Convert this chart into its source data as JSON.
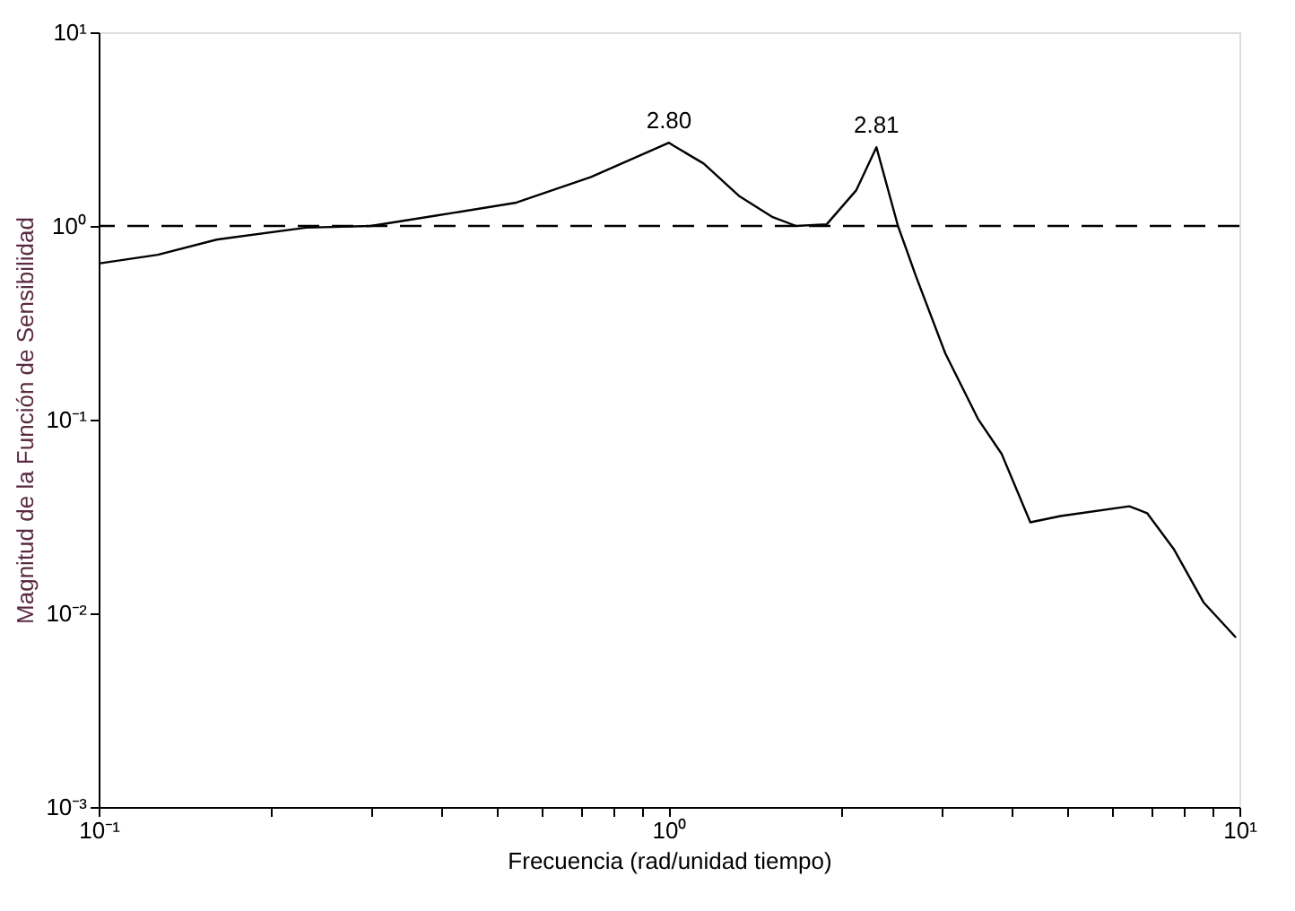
{
  "chart_data": {
    "type": "line",
    "xlabel": "Frecuencia (rad/unidad tiempo)",
    "ylabel": "Magnitud de la Función de Sensibilidad",
    "log": "xy",
    "grid": false,
    "line_style": "solid",
    "marker": "none",
    "xlim": [
      0.1,
      10
    ],
    "ylim": [
      0.001,
      10
    ],
    "xticks": [
      {
        "value": 0.1,
        "label": "10⁻¹"
      },
      {
        "value": 0.2,
        "label": null
      },
      {
        "value": 0.3,
        "label": null
      },
      {
        "value": 0.4,
        "label": null
      },
      {
        "value": 0.5,
        "label": null
      },
      {
        "value": 0.6,
        "label": null
      },
      {
        "value": 0.7,
        "label": null
      },
      {
        "value": 0.8,
        "label": null
      },
      {
        "value": 0.9,
        "label": null
      },
      {
        "value": 1,
        "label": "10⁰"
      },
      {
        "value": 2,
        "label": null
      },
      {
        "value": 3,
        "label": null
      },
      {
        "value": 4,
        "label": null
      },
      {
        "value": 5,
        "label": null
      },
      {
        "value": 6,
        "label": null
      },
      {
        "value": 7,
        "label": null
      },
      {
        "value": 8,
        "label": null
      },
      {
        "value": 9,
        "label": null
      },
      {
        "value": 10,
        "label": "10¹"
      }
    ],
    "yticks": [
      {
        "value": 0.001,
        "label": "10⁻³"
      },
      {
        "value": 0.01,
        "label": "10⁻²"
      },
      {
        "value": 0.1,
        "label": "10⁻¹"
      },
      {
        "value": 1,
        "label": "10⁰"
      },
      {
        "value": 10,
        "label": "10¹"
      }
    ],
    "series": [
      {
        "color": "#000000",
        "x": [
          0.1,
          0.127,
          0.161,
          0.231,
          0.3,
          0.39,
          0.54,
          0.73,
          1.0,
          1.02,
          1.15,
          1.33,
          1.52,
          1.67,
          1.89,
          2.13,
          2.31,
          2.52,
          2.71,
          3.05,
          3.48,
          3.83,
          4.3,
          4.86,
          6.41,
          6.89,
          7.67,
          8.65,
          9.86
        ],
        "values": [
          0.64,
          0.71,
          0.85,
          0.98,
          1.0,
          1.13,
          1.32,
          1.79,
          2.69,
          2.59,
          2.1,
          1.42,
          1.11,
          1.0,
          1.02,
          1.53,
          2.55,
          1.0,
          0.55,
          0.22,
          0.101,
          0.0665,
          0.0295,
          0.0318,
          0.0357,
          0.0329,
          0.0215,
          0.0114,
          0.0075
        ]
      }
    ],
    "ref_lines": [
      {
        "axis": "y",
        "value": 1,
        "label": null,
        "color": "#000000",
        "line_style": "dashed"
      }
    ],
    "annotations": [
      {
        "text": "2.80",
        "x": 1.0,
        "y": 2.69
      },
      {
        "text": "2.81",
        "x": 2.31,
        "y": 2.55
      }
    ]
  }
}
